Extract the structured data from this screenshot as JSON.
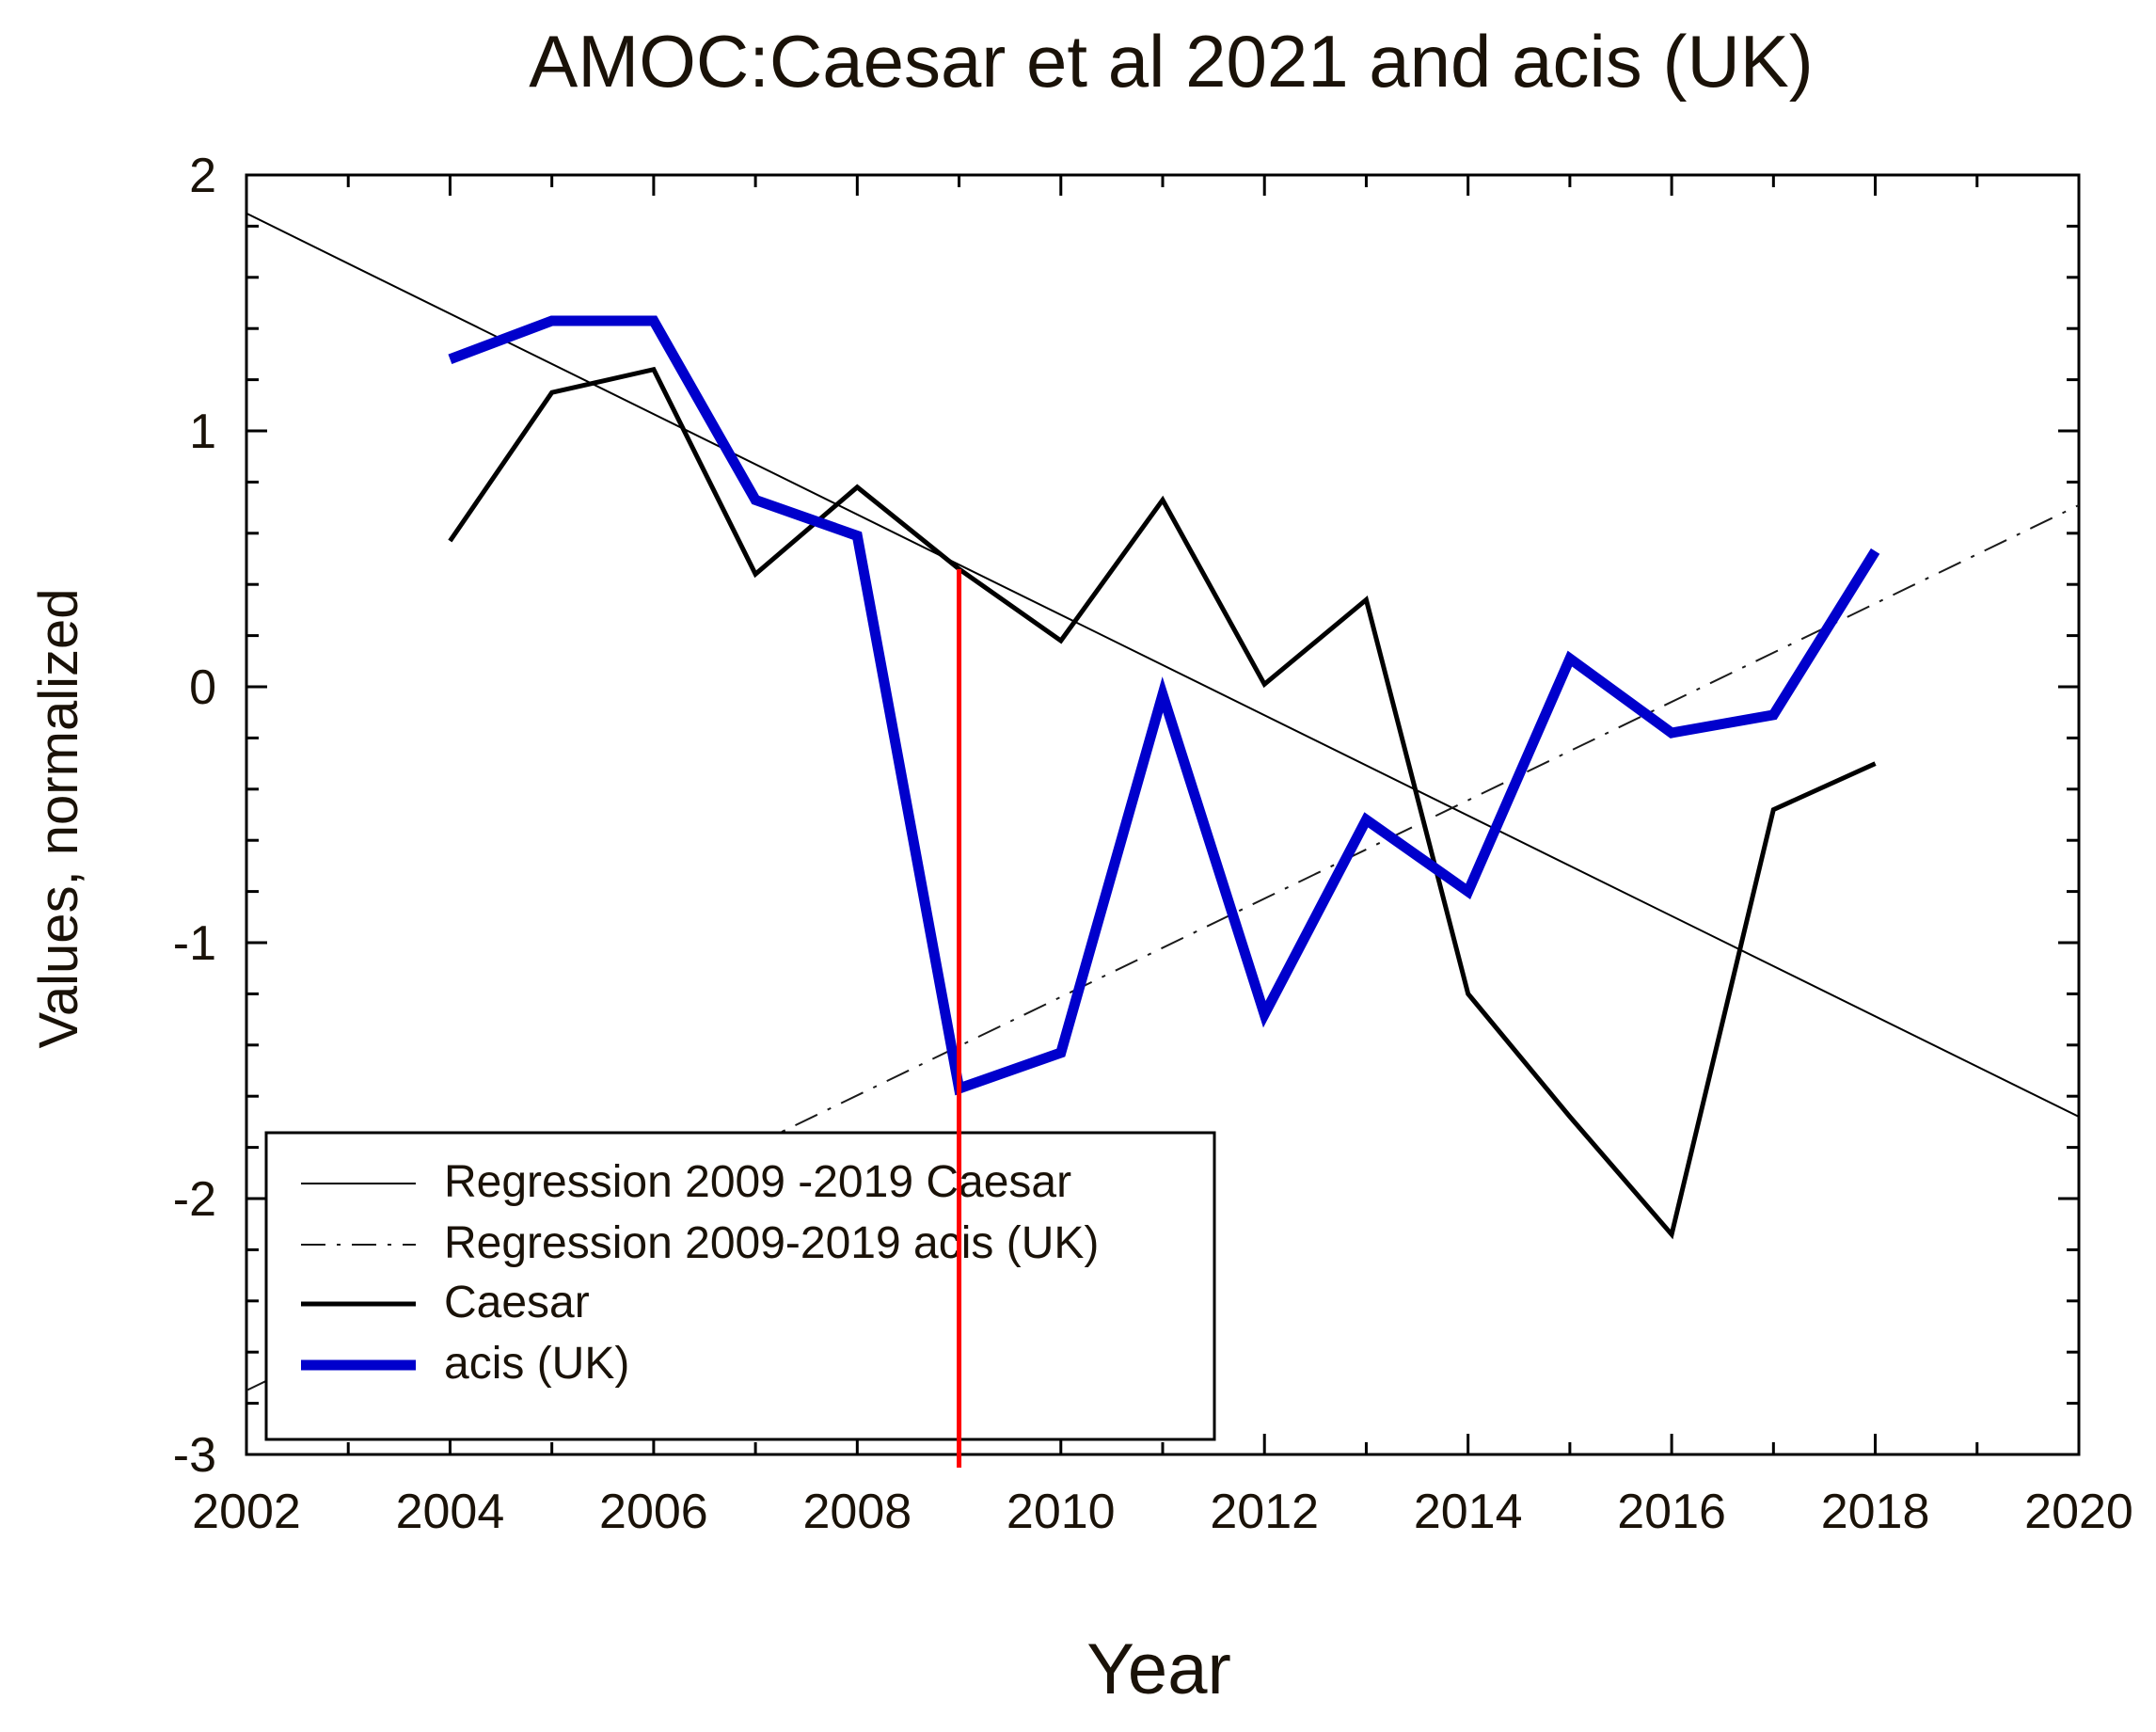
{
  "chart_data": {
    "type": "line",
    "title": "AMOC:Caesar et al 2021 and acis (UK)",
    "xlabel": "Year",
    "ylabel": "Values, normalized",
    "xlim": [
      2002,
      2020
    ],
    "ylim": [
      -3,
      2
    ],
    "x_ticks": [
      "2002",
      "2004",
      "2006",
      "2008",
      "2010",
      "2012",
      "2014",
      "2016",
      "2018",
      "2020"
    ],
    "y_ticks": [
      "2",
      "1",
      "0",
      "-1",
      "-2",
      "-3"
    ],
    "grid": false,
    "legend_position": "bottom-left",
    "colors": {
      "caesar": "#000000",
      "acis": "#0000cc",
      "regression_caesar": "#000000",
      "regression_acis": "#1a1a1a",
      "marker_line": "#ff0000",
      "text": "#1a1208"
    },
    "series": [
      {
        "name": "Caesar",
        "style": "solid-medium",
        "x": [
          2004,
          2005,
          2006,
          2007,
          2008,
          2009,
          2010,
          2011,
          2012,
          2013,
          2014,
          2015,
          2016,
          2017,
          2018
        ],
        "values": [
          0.57,
          1.15,
          1.24,
          0.44,
          0.78,
          0.46,
          0.18,
          0.73,
          0.01,
          0.34,
          -1.2,
          -1.68,
          -2.14,
          -0.48,
          -0.3
        ]
      },
      {
        "name": "acis (UK)",
        "style": "solid-thick",
        "x": [
          2004,
          2005,
          2006,
          2007,
          2008,
          2009,
          2010,
          2011,
          2012,
          2013,
          2014,
          2015,
          2016,
          2017,
          2018
        ],
        "values": [
          1.28,
          1.43,
          1.43,
          0.73,
          0.59,
          -1.57,
          -1.43,
          -0.03,
          -1.28,
          -0.52,
          -0.8,
          0.11,
          -0.18,
          -0.11,
          0.53
        ]
      },
      {
        "name": "Regression 2009 -2019 Caesar",
        "style": "solid-thin",
        "x": [
          2002,
          2020
        ],
        "values": [
          1.85,
          -1.68
        ]
      },
      {
        "name": "Regression 2009-2019 acis (UK)",
        "style": "dash-dot",
        "x": [
          2002,
          2020
        ],
        "values": [
          -2.75,
          0.71
        ]
      }
    ],
    "vertical_marker": {
      "x": 2009,
      "from": -3,
      "to": 0.46
    },
    "legend": [
      "Regression 2009 -2019 Caesar",
      "Regression 2009-2019 acis (UK)",
      "Caesar",
      "acis (UK)"
    ]
  }
}
